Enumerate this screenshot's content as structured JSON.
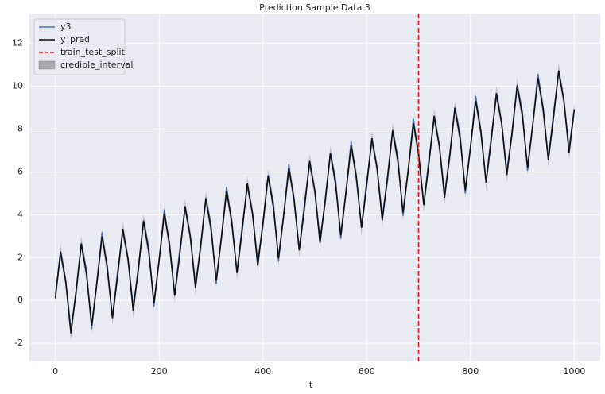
{
  "chart_data": {
    "type": "line",
    "title": "Prediction Sample Data 3",
    "x_label": "t",
    "x": [
      0,
      10,
      20,
      30,
      40,
      50,
      60,
      70,
      80,
      90,
      100,
      110,
      120,
      130,
      140,
      150,
      160,
      170,
      180,
      190,
      200,
      210,
      220,
      230,
      240,
      250,
      260,
      270,
      280,
      290,
      300,
      310,
      320,
      330,
      340,
      350,
      360,
      370,
      380,
      390,
      400,
      410,
      420,
      430,
      440,
      450,
      460,
      470,
      480,
      490,
      500,
      510,
      520,
      530,
      540,
      550,
      560,
      570,
      580,
      590,
      600,
      610,
      620,
      630,
      640,
      650,
      660,
      670,
      680,
      690,
      700,
      710,
      720,
      730,
      740,
      750,
      760,
      770,
      780,
      790,
      800,
      810,
      820,
      830,
      840,
      850,
      860,
      870,
      880,
      890,
      900,
      910,
      920,
      930,
      940,
      950,
      960,
      970,
      980,
      990,
      1000
    ],
    "series": [
      {
        "name": "y3",
        "color": "#4c72b0",
        "values": [
          0.3,
          2.14,
          0.93,
          -1.34,
          0.3,
          2.69,
          1.43,
          -1.33,
          0.85,
          3.19,
          1.43,
          -0.78,
          1.36,
          3.19,
          1.98,
          -0.28,
          1.36,
          3.75,
          2.48,
          -0.28,
          1.91,
          4.25,
          2.49,
          0.27,
          2.41,
          4.25,
          3.04,
          0.78,
          2.41,
          4.8,
          3.54,
          0.78,
          2.97,
          5.3,
          3.54,
          1.33,
          3.47,
          5.31,
          4.09,
          1.83,
          3.47,
          5.86,
          4.6,
          1.83,
          4.02,
          6.36,
          4.6,
          2.39,
          4.52,
          6.36,
          5.15,
          2.89,
          4.53,
          6.91,
          5.65,
          2.89,
          5.08,
          7.42,
          5.65,
          3.44,
          5.58,
          7.42,
          6.21,
          3.94,
          5.58,
          7.97,
          6.71,
          3.95,
          6.13,
          8.47,
          6.71,
          4.5,
          6.64,
          8.47,
          7.26,
          5.0,
          6.64,
          9.03,
          7.76,
          5.0,
          7.19,
          9.53,
          7.77,
          5.55,
          7.69,
          9.53,
          8.32,
          6.06,
          7.69,
          10.08,
          8.82,
          6.06,
          8.25,
          10.58,
          8.82,
          6.61,
          8.75,
          10.59,
          9.37,
          7.11,
          8.95
        ]
      },
      {
        "name": "y_pred",
        "color": "#111111",
        "values": [
          0.1,
          2.29,
          0.88,
          -1.54,
          0.45,
          2.64,
          1.23,
          -1.18,
          0.8,
          2.99,
          1.58,
          -0.83,
          1.16,
          3.34,
          1.93,
          -0.48,
          1.51,
          3.7,
          2.28,
          -0.13,
          1.86,
          4.05,
          2.64,
          0.22,
          2.21,
          4.4,
          2.99,
          0.58,
          2.56,
          4.75,
          3.34,
          0.93,
          2.92,
          5.1,
          3.69,
          1.28,
          3.27,
          5.46,
          4.04,
          1.63,
          3.62,
          5.81,
          4.4,
          1.98,
          3.97,
          6.16,
          4.75,
          2.34,
          4.32,
          6.51,
          5.1,
          2.69,
          4.68,
          6.86,
          5.45,
          3.04,
          5.03,
          7.22,
          5.8,
          3.39,
          5.38,
          7.57,
          6.16,
          3.74,
          5.73,
          7.92,
          6.51,
          4.1,
          6.08,
          8.27,
          6.86,
          4.45,
          6.44,
          8.62,
          7.21,
          4.8,
          6.79,
          8.98,
          7.56,
          5.15,
          7.14,
          9.33,
          7.92,
          5.5,
          7.49,
          9.68,
          8.27,
          5.86,
          7.84,
          10.03,
          8.62,
          6.21,
          8.2,
          10.38,
          8.97,
          6.56,
          8.55,
          10.74,
          9.32,
          6.91,
          8.9
        ]
      }
    ],
    "split": {
      "name": "train_test_split",
      "x": 700,
      "color": "#e41a1c"
    },
    "credible_interval": {
      "name": "credible_interval",
      "color": "#a9a9b0",
      "lower": [
        -0.25,
        1.94,
        0.53,
        -1.89,
        0.1,
        2.29,
        0.88,
        -1.53,
        0.45,
        2.64,
        1.23,
        -1.18,
        0.81,
        2.99,
        1.58,
        -0.83,
        1.16,
        3.35,
        1.93,
        -0.48,
        1.51,
        3.7,
        2.29,
        -0.13,
        1.86,
        4.05,
        2.64,
        0.23,
        2.21,
        4.4,
        2.99,
        0.58,
        2.57,
        4.75,
        3.34,
        0.93,
        2.92,
        5.11,
        3.69,
        1.28,
        3.27,
        5.46,
        4.05,
        1.63,
        3.62,
        5.81,
        4.4,
        1.99,
        3.97,
        6.16,
        4.75,
        2.34,
        4.33,
        6.51,
        5.1,
        2.69,
        4.68,
        6.87,
        5.45,
        3.04,
        5.03,
        7.22,
        5.81,
        3.39,
        5.38,
        7.57,
        6.16,
        3.75,
        5.73,
        7.92,
        6.51,
        4.1,
        6.09,
        8.27,
        6.86,
        4.45,
        6.44,
        8.63,
        7.21,
        4.8,
        6.79,
        8.98,
        7.57,
        5.15,
        7.14,
        9.33,
        7.92,
        5.51,
        7.49,
        9.68,
        8.27,
        5.86,
        7.85,
        10.03,
        8.62,
        6.21,
        8.2,
        10.39,
        8.97,
        6.56,
        8.55
      ],
      "upper": [
        0.45,
        2.64,
        1.23,
        -1.19,
        0.8,
        2.99,
        1.58,
        -0.83,
        1.15,
        3.34,
        1.93,
        -0.48,
        1.51,
        3.69,
        2.28,
        -0.13,
        1.86,
        4.05,
        2.63,
        0.22,
        2.21,
        4.4,
        2.99,
        0.57,
        2.56,
        4.75,
        3.34,
        0.93,
        2.91,
        5.1,
        3.69,
        1.28,
        3.27,
        5.45,
        4.04,
        1.63,
        3.62,
        5.81,
        4.39,
        1.98,
        3.97,
        6.16,
        4.75,
        2.33,
        4.32,
        6.51,
        5.1,
        2.69,
        4.67,
        6.86,
        5.45,
        3.04,
        5.03,
        7.21,
        5.8,
        3.39,
        5.38,
        7.57,
        6.15,
        3.74,
        5.73,
        7.92,
        6.51,
        4.09,
        6.08,
        8.27,
        6.86,
        4.45,
        6.43,
        8.62,
        7.21,
        4.8,
        6.79,
        8.97,
        7.56,
        5.15,
        7.14,
        9.33,
        7.91,
        5.5,
        7.49,
        9.68,
        8.27,
        5.85,
        7.84,
        10.03,
        8.62,
        6.21,
        8.19,
        10.38,
        8.97,
        6.56,
        8.55,
        10.73,
        9.32,
        6.91,
        8.9,
        11.09,
        9.67,
        7.26,
        9.25
      ]
    },
    "xlim": [
      -50,
      1050
    ],
    "xticks": [
      0,
      200,
      400,
      600,
      800,
      1000
    ],
    "ylim": [
      -2.85,
      13.4
    ],
    "yticks": [
      -2,
      0,
      2,
      4,
      6,
      8,
      10,
      12
    ],
    "grid": true,
    "legend": "upper left"
  }
}
